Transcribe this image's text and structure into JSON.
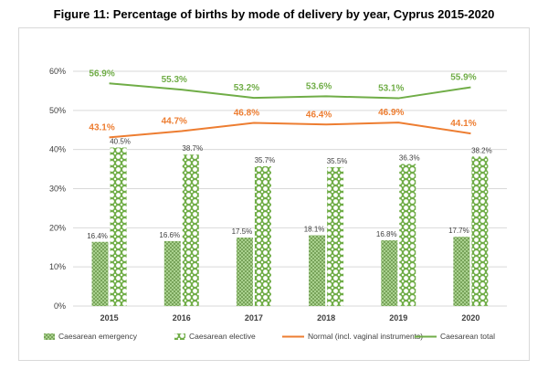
{
  "chart_data": {
    "type": "bar+line",
    "title": "Figure 11: Percentage of births by mode of delivery by year, Cyprus 2015-2020",
    "categories": [
      "2015",
      "2016",
      "2017",
      "2018",
      "2019",
      "2020"
    ],
    "ylim": [
      0,
      60
    ],
    "yticks": [
      0,
      10,
      20,
      30,
      40,
      50,
      60
    ],
    "ytick_labels": [
      "0%",
      "10%",
      "20%",
      "30%",
      "40%",
      "50%",
      "60%"
    ],
    "series": [
      {
        "name": "Caesarean emergency",
        "kind": "bar",
        "values": [
          16.4,
          16.6,
          17.5,
          18.1,
          16.8,
          17.7
        ],
        "labels": [
          "16.4%",
          "16.6%",
          "17.5%",
          "18.1%",
          "16.8%",
          "17.7%"
        ],
        "color": "#70ad47"
      },
      {
        "name": "Caesarean elective",
        "kind": "bar",
        "values": [
          40.5,
          38.7,
          35.7,
          35.5,
          36.3,
          38.2
        ],
        "labels": [
          "40.5%",
          "38.7%",
          "35.7%",
          "35.5%",
          "36.3%",
          "38.2%"
        ],
        "color": "#70ad47"
      },
      {
        "name": "Normal (incl. vaginal instruments)",
        "kind": "line",
        "values": [
          43.1,
          44.7,
          46.8,
          46.4,
          46.9,
          44.1
        ],
        "labels": [
          "43.1%",
          "44.7%",
          "46.8%",
          "46.4%",
          "46.9%",
          "44.1%"
        ],
        "color": "#ed7d31"
      },
      {
        "name": "Caesarean total",
        "kind": "line",
        "values": [
          56.9,
          55.3,
          53.2,
          53.6,
          53.1,
          55.9
        ],
        "labels": [
          "56.9%",
          "55.3%",
          "53.2%",
          "53.6%",
          "53.1%",
          "55.9%"
        ],
        "color": "#70ad47"
      }
    ],
    "legend": "bottom",
    "grid": true
  }
}
